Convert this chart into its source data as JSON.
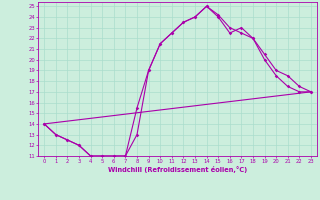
{
  "xlabel": "Windchill (Refroidissement éolien,°C)",
  "bg_color": "#cceedd",
  "line_color": "#aa00aa",
  "grid_color": "#aaddcc",
  "x_ticks": [
    0,
    1,
    2,
    3,
    4,
    5,
    6,
    7,
    8,
    9,
    10,
    11,
    12,
    13,
    14,
    15,
    16,
    17,
    18,
    19,
    20,
    21,
    22,
    23
  ],
  "ylim": [
    11,
    25.4
  ],
  "xlim": [
    -0.5,
    23.5
  ],
  "y_ticks": [
    11,
    12,
    13,
    14,
    15,
    16,
    17,
    18,
    19,
    20,
    21,
    22,
    23,
    24,
    25
  ],
  "line1_x": [
    0,
    1,
    2,
    3,
    4,
    5,
    6,
    7,
    8,
    9,
    10,
    11,
    12,
    13,
    14,
    15,
    16,
    17,
    18,
    19,
    20,
    21,
    22,
    23
  ],
  "line1_y": [
    14.0,
    13.0,
    12.5,
    12.0,
    11.0,
    11.0,
    11.0,
    11.0,
    15.5,
    19.0,
    21.5,
    22.5,
    23.5,
    24.0,
    25.0,
    24.0,
    22.5,
    23.0,
    22.0,
    20.0,
    18.5,
    17.5,
    17.0,
    17.0
  ],
  "line2_x": [
    0,
    23
  ],
  "line2_y": [
    14.0,
    17.0
  ],
  "line3_x": [
    0,
    1,
    2,
    3,
    4,
    5,
    6,
    7,
    8,
    9,
    10,
    11,
    12,
    13,
    14,
    15,
    16,
    17,
    18,
    19,
    20,
    21,
    22,
    23
  ],
  "line3_y": [
    14.0,
    13.0,
    12.5,
    12.0,
    11.0,
    11.0,
    11.0,
    11.0,
    13.0,
    19.0,
    21.5,
    22.5,
    23.5,
    24.0,
    25.0,
    24.2,
    23.0,
    22.5,
    22.0,
    20.5,
    19.0,
    18.5,
    17.5,
    17.0
  ]
}
